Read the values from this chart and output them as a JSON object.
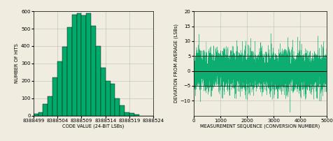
{
  "hist_bins_left": [
    8388499,
    8388500,
    8388501,
    8388502,
    8388503,
    8388504,
    8388505,
    8388506,
    8388507,
    8388508,
    8388509,
    8388510,
    8388511,
    8388512,
    8388513,
    8388514,
    8388515,
    8388516,
    8388517,
    8388518,
    8388519,
    8388520,
    8388521,
    8388522,
    8388523
  ],
  "hist_values": [
    10,
    18,
    65,
    110,
    220,
    310,
    395,
    510,
    580,
    590,
    575,
    588,
    515,
    400,
    275,
    200,
    185,
    100,
    58,
    20,
    13,
    5,
    0,
    0,
    0
  ],
  "hist_xlim": [
    8388499,
    8388524
  ],
  "hist_xticks": [
    8388499,
    8388504,
    8388509,
    8388514,
    8388519,
    8388524
  ],
  "hist_ylim": [
    0,
    600
  ],
  "hist_yticks": [
    0,
    100,
    200,
    300,
    400,
    500,
    600
  ],
  "hist_xlabel": "CODE VALUE (24-BIT LSBs)",
  "hist_ylabel": "NUMBER OF HITS",
  "bar_color": "#00aa6a",
  "bar_edge_color": "#000000",
  "noise_n": 5000,
  "noise_xlim": [
    0,
    5000
  ],
  "noise_xticks": [
    0,
    1000,
    2000,
    3000,
    4000,
    5000
  ],
  "noise_ylim": [
    -15,
    20
  ],
  "noise_yticks": [
    -10,
    -5,
    0,
    5,
    10,
    15,
    20
  ],
  "noise_xlabel": "MEASUREMENT SEQUENCE (CONVERSION NUMBER)",
  "noise_ylabel": "DEVIATION FROM AVERAGE (LSBs)",
  "noise_color": "#00aa6a",
  "noise_std": 3.2,
  "grid_color": "#bbbbbb",
  "bg_color": "#f0ece0",
  "hline_color": "#000000",
  "hline_y": [
    5,
    -5
  ],
  "font_size": 5.0,
  "label_font_size": 4.8
}
